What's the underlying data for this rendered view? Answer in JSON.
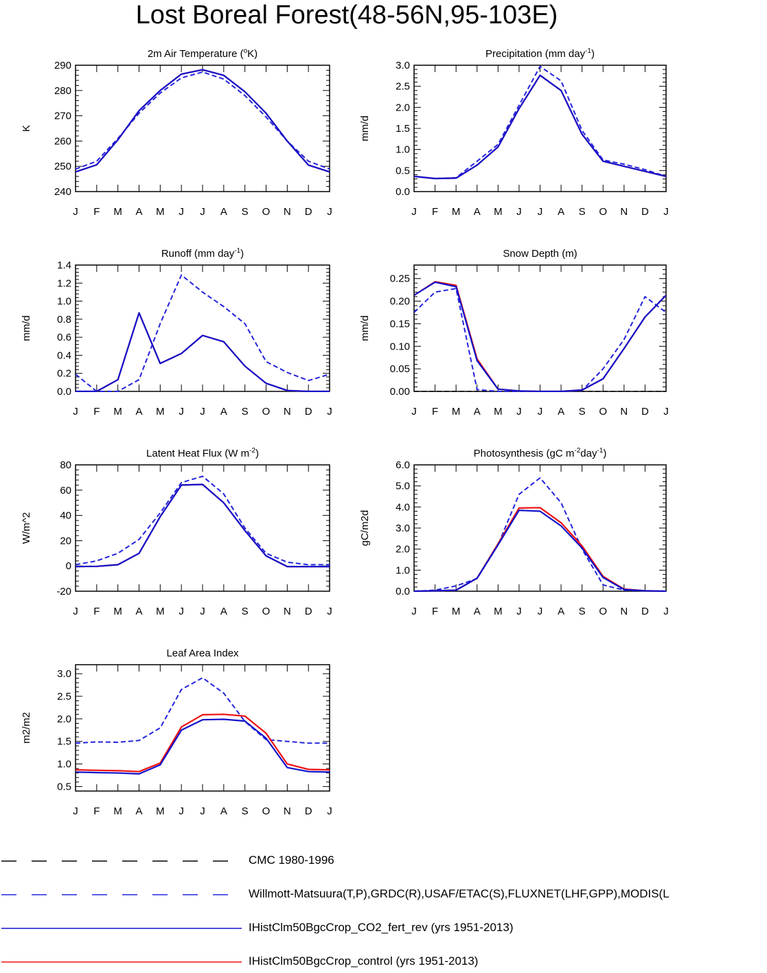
{
  "title": "Lost Boreal Forest(48-56N,95-103E)",
  "month_labels": [
    "J",
    "F",
    "M",
    "A",
    "M",
    "J",
    "J",
    "A",
    "S",
    "O",
    "N",
    "D",
    "J"
  ],
  "colors": {
    "obs": "#2222dd",
    "co2": "#1111cc",
    "control": "#ee1111",
    "cmc": "#000000"
  },
  "legend": [
    {
      "label": "CMC 1980-1996",
      "style": "dashed",
      "color": "#000000"
    },
    {
      "label": "Willmott-Matsuura(T,P),GRDC(R),USAF/ETAC(S),FLUXNET(LHF,GPP),MODIS(L",
      "style": "dashed",
      "color": "#2222dd"
    },
    {
      "label": "IHistClm50BgcCrop_CO2_fert_rev (yrs 1951-2013)",
      "style": "solid",
      "color": "#1111cc"
    },
    {
      "label": "IHistClm50BgcCrop_control (yrs 1951-2013)",
      "style": "solid",
      "color": "#ee1111"
    }
  ],
  "chart_data": [
    {
      "type": "line",
      "title": "2m Air Temperature (",
      "title_sup": "o",
      "title_tail": "K)",
      "ylabel": "K",
      "ylim": [
        240,
        290
      ],
      "yticks": [
        "240",
        "250",
        "260",
        "270",
        "280",
        "290"
      ],
      "ytick_values": [
        240,
        250,
        260,
        270,
        280,
        290
      ],
      "x": [
        "J",
        "F",
        "M",
        "A",
        "M",
        "J",
        "J",
        "A",
        "S",
        "O",
        "N",
        "D",
        "J"
      ],
      "series": [
        {
          "role": "obs",
          "values": [
            248.9,
            252.0,
            261.0,
            271.0,
            279.0,
            285.0,
            287.3,
            284.5,
            278.0,
            269.5,
            260.0,
            252.0,
            248.9
          ]
        },
        {
          "role": "control",
          "values": [
            247.8,
            250.6,
            260.5,
            272.0,
            280.0,
            286.5,
            288.2,
            286.0,
            279.5,
            271.0,
            260.0,
            250.5,
            247.8
          ]
        },
        {
          "role": "co2",
          "values": [
            247.8,
            250.6,
            260.5,
            272.0,
            280.0,
            286.5,
            288.2,
            286.0,
            279.5,
            271.0,
            260.0,
            250.5,
            247.8
          ]
        }
      ]
    },
    {
      "type": "line",
      "title": "Precipitation (mm day",
      "title_sup": "-1",
      "title_tail": ")",
      "ylabel": "mm/d",
      "ylim": [
        0,
        3
      ],
      "yticks": [
        "0.0",
        "0.5",
        "1.0",
        "1.5",
        "2.0",
        "2.5",
        "3.0"
      ],
      "ytick_values": [
        0,
        0.5,
        1,
        1.5,
        2,
        2.5,
        3
      ],
      "x": [
        "J",
        "F",
        "M",
        "A",
        "M",
        "J",
        "J",
        "A",
        "S",
        "O",
        "N",
        "D",
        "J"
      ],
      "series": [
        {
          "role": "obs",
          "values": [
            0.36,
            0.31,
            0.33,
            0.72,
            1.12,
            2.05,
            2.97,
            2.63,
            1.45,
            0.75,
            0.65,
            0.52,
            0.36
          ]
        },
        {
          "role": "control",
          "values": [
            0.36,
            0.31,
            0.32,
            0.63,
            1.06,
            1.97,
            2.76,
            2.4,
            1.36,
            0.72,
            0.6,
            0.48,
            0.36
          ]
        },
        {
          "role": "co2",
          "values": [
            0.36,
            0.31,
            0.32,
            0.63,
            1.06,
            1.97,
            2.76,
            2.4,
            1.36,
            0.72,
            0.6,
            0.48,
            0.36
          ]
        }
      ]
    },
    {
      "type": "line",
      "title": "Runoff (mm day",
      "title_sup": "-1",
      "title_tail": ")",
      "ylabel": "mm/d",
      "ylim": [
        0,
        1.4
      ],
      "yticks": [
        "0.0",
        "0.2",
        "0.4",
        "0.6",
        "0.8",
        "1.0",
        "1.2",
        "1.4"
      ],
      "ytick_values": [
        0,
        0.2,
        0.4,
        0.6,
        0.8,
        1.0,
        1.2,
        1.4
      ],
      "x": [
        "J",
        "F",
        "M",
        "A",
        "M",
        "J",
        "J",
        "A",
        "S",
        "O",
        "N",
        "D",
        "J"
      ],
      "series": [
        {
          "role": "obs",
          "values": [
            0.19,
            0.0,
            0.0,
            0.13,
            0.75,
            1.29,
            1.1,
            0.94,
            0.75,
            0.33,
            0.21,
            0.12,
            0.19
          ]
        },
        {
          "role": "control",
          "values": [
            0.0,
            0.0,
            0.13,
            0.87,
            0.31,
            0.42,
            0.62,
            0.55,
            0.28,
            0.09,
            0.01,
            0.0,
            0.0
          ]
        },
        {
          "role": "co2",
          "values": [
            0.0,
            0.0,
            0.13,
            0.87,
            0.31,
            0.42,
            0.62,
            0.55,
            0.28,
            0.09,
            0.01,
            0.0,
            0.0
          ]
        }
      ]
    },
    {
      "type": "line",
      "title": "Snow Depth (m)",
      "title_sup": "",
      "title_tail": "",
      "ylabel": "mm/d",
      "ylim": [
        0,
        0.28
      ],
      "yticks": [
        "0.00",
        "0.05",
        "0.10",
        "0.15",
        "0.20",
        "0.25"
      ],
      "ytick_values": [
        0,
        0.05,
        0.1,
        0.15,
        0.2,
        0.25
      ],
      "x": [
        "J",
        "F",
        "M",
        "A",
        "M",
        "J",
        "J",
        "A",
        "S",
        "O",
        "N",
        "D",
        "J"
      ],
      "series": [
        {
          "role": "cmc",
          "values": [
            0,
            0,
            0,
            0,
            0,
            0,
            0,
            0,
            0,
            0,
            0,
            0,
            0
          ]
        },
        {
          "role": "obs",
          "values": [
            0.175,
            0.22,
            0.228,
            0.004,
            0.0,
            0.0,
            0.0,
            0.0,
            0.002,
            0.05,
            0.115,
            0.21,
            0.175
          ]
        },
        {
          "role": "control",
          "values": [
            0.213,
            0.243,
            0.235,
            0.072,
            0.005,
            0.001,
            0.0,
            0.0,
            0.003,
            0.028,
            0.095,
            0.165,
            0.213
          ]
        },
        {
          "role": "co2",
          "values": [
            0.213,
            0.242,
            0.232,
            0.068,
            0.005,
            0.001,
            0.0,
            0.0,
            0.003,
            0.028,
            0.095,
            0.165,
            0.213
          ]
        }
      ]
    },
    {
      "type": "line",
      "title": "Latent Heat Flux (W m",
      "title_sup": "-2",
      "title_tail": ")",
      "ylabel": "W/m^2",
      "ylim": [
        -20,
        80
      ],
      "yticks": [
        "-20",
        "0",
        "20",
        "40",
        "60",
        "80"
      ],
      "ytick_values": [
        -20,
        0,
        20,
        40,
        60,
        80
      ],
      "x": [
        "J",
        "F",
        "M",
        "A",
        "M",
        "J",
        "J",
        "A",
        "S",
        "O",
        "N",
        "D",
        "J"
      ],
      "series": [
        {
          "role": "obs",
          "values": [
            1,
            4,
            10,
            21,
            42,
            66,
            71,
            57,
            30,
            10,
            3,
            1,
            1
          ]
        },
        {
          "role": "control",
          "values": [
            -0.5,
            -0.3,
            1,
            10,
            39,
            64,
            64.5,
            50,
            28,
            8,
            -0.5,
            -0.5,
            -0.5
          ]
        },
        {
          "role": "co2",
          "values": [
            -0.5,
            -0.3,
            1,
            10,
            39,
            64,
            64.5,
            50,
            28,
            8,
            -0.5,
            -0.5,
            -0.5
          ]
        }
      ]
    },
    {
      "type": "line",
      "title": "Photosynthesis (gC m",
      "title_sup": "-2",
      "title_tail": "day",
      "title_sup2": "-1",
      "title_tail2": ")",
      "ylabel": "gC/m2d",
      "ylim": [
        0,
        6
      ],
      "yticks": [
        "0.0",
        "1.0",
        "2.0",
        "3.0",
        "4.0",
        "5.0",
        "6.0"
      ],
      "ytick_values": [
        0,
        1,
        2,
        3,
        4,
        5,
        6
      ],
      "x": [
        "J",
        "F",
        "M",
        "A",
        "M",
        "J",
        "J",
        "A",
        "S",
        "O",
        "N",
        "D",
        "J"
      ],
      "series": [
        {
          "role": "obs",
          "values": [
            0.0,
            0.05,
            0.25,
            0.6,
            2.2,
            4.6,
            5.38,
            4.2,
            2.0,
            0.3,
            0.05,
            0.02,
            0.0
          ]
        },
        {
          "role": "control",
          "values": [
            0.0,
            0.02,
            0.05,
            0.62,
            2.25,
            3.95,
            3.97,
            3.25,
            2.15,
            0.7,
            0.1,
            0.02,
            0.0
          ]
        },
        {
          "role": "co2",
          "values": [
            0.0,
            0.02,
            0.05,
            0.62,
            2.2,
            3.84,
            3.8,
            3.1,
            2.05,
            0.65,
            0.08,
            0.02,
            0.0
          ]
        }
      ]
    },
    {
      "type": "line",
      "title": "Leaf Area Index",
      "title_sup": "",
      "title_tail": "",
      "ylabel": "m2/m2",
      "ylim": [
        0.4,
        3.2
      ],
      "yticks": [
        "0.5",
        "1.0",
        "1.5",
        "2.0",
        "2.5",
        "3.0"
      ],
      "ytick_values": [
        0.5,
        1.0,
        1.5,
        2.0,
        2.5,
        3.0
      ],
      "x": [
        "J",
        "F",
        "M",
        "A",
        "M",
        "J",
        "J",
        "A",
        "S",
        "O",
        "N",
        "D",
        "J"
      ],
      "series": [
        {
          "role": "obs",
          "values": [
            1.46,
            1.49,
            1.48,
            1.52,
            1.8,
            2.65,
            2.91,
            2.57,
            1.94,
            1.54,
            1.5,
            1.46,
            1.46
          ]
        },
        {
          "role": "control",
          "values": [
            0.87,
            0.86,
            0.85,
            0.83,
            1.02,
            1.82,
            2.09,
            2.1,
            2.06,
            1.68,
            1.0,
            0.88,
            0.87
          ]
        },
        {
          "role": "co2",
          "values": [
            0.82,
            0.81,
            0.8,
            0.78,
            0.98,
            1.75,
            1.98,
            1.99,
            1.95,
            1.57,
            0.92,
            0.83,
            0.82
          ]
        }
      ]
    }
  ]
}
